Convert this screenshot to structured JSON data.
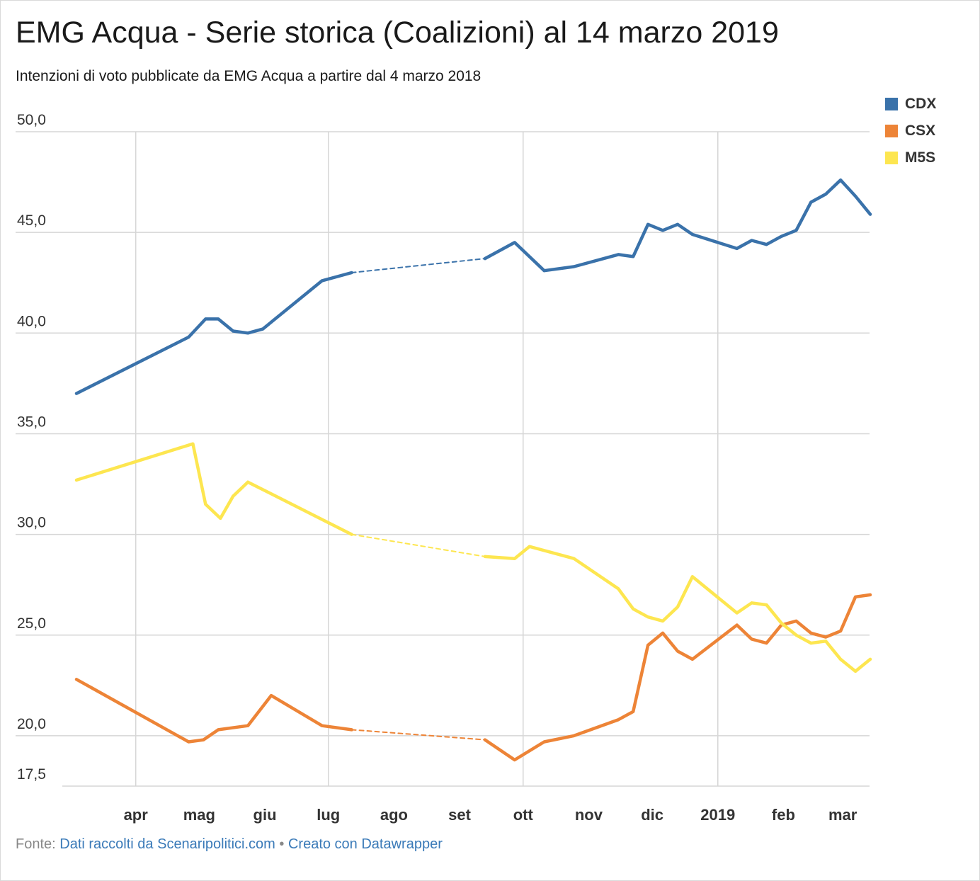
{
  "header": {
    "title": "EMG Acqua - Serie storica (Coalizioni) al 14 marzo 2019",
    "subtitle": "Intenzioni di voto pubblicate da EMG Acqua a partire dal 4 marzo 2018"
  },
  "footer": {
    "source_prefix": "Fonte:",
    "source_link": "Dati raccolti da Scenaripolitici.com",
    "separator": "•",
    "made_with": "Creato con Datawrapper"
  },
  "chart_data": {
    "type": "line",
    "title": "EMG Acqua - Serie storica (Coalizioni) al 14 marzo 2019",
    "subtitle": "Intenzioni di voto pubblicate da EMG Acqua a partire dal 4 marzo 2018",
    "xlabel": "",
    "ylabel": "",
    "ylim": [
      17.5,
      50
    ],
    "y_ticks": [
      "50,0",
      "45,0",
      "40,0",
      "35,0",
      "30,0",
      "25,0",
      "20,0",
      "17,5"
    ],
    "y_tick_values": [
      50,
      45,
      40,
      35,
      30,
      25,
      20,
      17.5
    ],
    "xlim": [
      "2018-03-04",
      "2019-03-14"
    ],
    "x_ticks": [
      {
        "label": "apr",
        "date": "2018-04-01",
        "grid": true
      },
      {
        "label": "mag",
        "date": "2018-05-01",
        "grid": false
      },
      {
        "label": "giu",
        "date": "2018-06-01",
        "grid": false
      },
      {
        "label": "lug",
        "date": "2018-07-01",
        "grid": true
      },
      {
        "label": "ago",
        "date": "2018-08-01",
        "grid": false
      },
      {
        "label": "set",
        "date": "2018-09-01",
        "grid": false
      },
      {
        "label": "ott",
        "date": "2018-10-01",
        "grid": true
      },
      {
        "label": "nov",
        "date": "2018-11-01",
        "grid": false
      },
      {
        "label": "dic",
        "date": "2018-12-01",
        "grid": false
      },
      {
        "label": "2019",
        "date": "2019-01-01",
        "grid": true
      },
      {
        "label": "feb",
        "date": "2019-02-01",
        "grid": false
      },
      {
        "label": "mar",
        "date": "2019-03-01",
        "grid": false
      }
    ],
    "legend_position": "top-right",
    "grid": true,
    "gap": {
      "start": "2018-07-12",
      "end": "2018-09-13"
    },
    "series": [
      {
        "name": "CDX",
        "color": "#3a72aa",
        "points": [
          [
            "2018-03-04",
            37.0
          ],
          [
            "2018-04-26",
            39.8
          ],
          [
            "2018-05-04",
            40.7
          ],
          [
            "2018-05-10",
            40.7
          ],
          [
            "2018-05-17",
            40.1
          ],
          [
            "2018-05-24",
            40.0
          ],
          [
            "2018-05-31",
            40.2
          ],
          [
            "2018-06-28",
            42.6
          ],
          [
            "2018-07-12",
            43.0
          ],
          [
            "2018-09-13",
            43.7
          ],
          [
            "2018-09-27",
            44.5
          ],
          [
            "2018-10-11",
            43.1
          ],
          [
            "2018-10-25",
            43.3
          ],
          [
            "2018-11-15",
            43.9
          ],
          [
            "2018-11-22",
            43.8
          ],
          [
            "2018-11-29",
            45.4
          ],
          [
            "2018-12-06",
            45.1
          ],
          [
            "2018-12-13",
            45.4
          ],
          [
            "2018-12-20",
            44.9
          ],
          [
            "2019-01-10",
            44.2
          ],
          [
            "2019-01-17",
            44.6
          ],
          [
            "2019-01-24",
            44.4
          ],
          [
            "2019-01-31",
            44.8
          ],
          [
            "2019-02-07",
            45.1
          ],
          [
            "2019-02-14",
            46.5
          ],
          [
            "2019-02-21",
            46.9
          ],
          [
            "2019-02-28",
            47.6
          ],
          [
            "2019-03-07",
            46.8
          ],
          [
            "2019-03-14",
            45.9
          ]
        ]
      },
      {
        "name": "CSX",
        "color": "#ed8437",
        "points": [
          [
            "2018-03-04",
            22.8
          ],
          [
            "2018-04-26",
            19.7
          ],
          [
            "2018-05-03",
            19.8
          ],
          [
            "2018-05-10",
            20.3
          ],
          [
            "2018-05-24",
            20.5
          ],
          [
            "2018-06-04",
            22.0
          ],
          [
            "2018-06-28",
            20.5
          ],
          [
            "2018-07-12",
            20.3
          ],
          [
            "2018-09-13",
            19.8
          ],
          [
            "2018-09-27",
            18.8
          ],
          [
            "2018-10-11",
            19.7
          ],
          [
            "2018-10-25",
            20.0
          ],
          [
            "2018-11-15",
            20.8
          ],
          [
            "2018-11-22",
            21.2
          ],
          [
            "2018-11-29",
            24.5
          ],
          [
            "2018-12-06",
            25.1
          ],
          [
            "2018-12-13",
            24.2
          ],
          [
            "2018-12-20",
            23.8
          ],
          [
            "2019-01-10",
            25.5
          ],
          [
            "2019-01-17",
            24.8
          ],
          [
            "2019-01-24",
            24.6
          ],
          [
            "2019-01-31",
            25.5
          ],
          [
            "2019-02-07",
            25.7
          ],
          [
            "2019-02-14",
            25.1
          ],
          [
            "2019-02-21",
            24.9
          ],
          [
            "2019-02-28",
            25.2
          ],
          [
            "2019-03-07",
            26.9
          ],
          [
            "2019-03-14",
            27.0
          ]
        ]
      },
      {
        "name": "M5S",
        "color": "#fde650",
        "points": [
          [
            "2018-03-04",
            32.7
          ],
          [
            "2018-04-28",
            34.5
          ],
          [
            "2018-05-04",
            31.5
          ],
          [
            "2018-05-11",
            30.8
          ],
          [
            "2018-05-17",
            31.9
          ],
          [
            "2018-05-24",
            32.6
          ],
          [
            "2018-07-12",
            30.0
          ],
          [
            "2018-09-13",
            28.9
          ],
          [
            "2018-09-27",
            28.8
          ],
          [
            "2018-10-04",
            29.4
          ],
          [
            "2018-10-25",
            28.8
          ],
          [
            "2018-11-15",
            27.3
          ],
          [
            "2018-11-22",
            26.3
          ],
          [
            "2018-11-29",
            25.9
          ],
          [
            "2018-12-06",
            25.7
          ],
          [
            "2018-12-13",
            26.4
          ],
          [
            "2018-12-20",
            27.9
          ],
          [
            "2019-01-10",
            26.1
          ],
          [
            "2019-01-17",
            26.6
          ],
          [
            "2019-01-24",
            26.5
          ],
          [
            "2019-01-31",
            25.6
          ],
          [
            "2019-02-07",
            25.0
          ],
          [
            "2019-02-14",
            24.6
          ],
          [
            "2019-02-21",
            24.7
          ],
          [
            "2019-02-28",
            23.8
          ],
          [
            "2019-03-07",
            23.2
          ],
          [
            "2019-03-14",
            23.8
          ]
        ]
      }
    ]
  }
}
